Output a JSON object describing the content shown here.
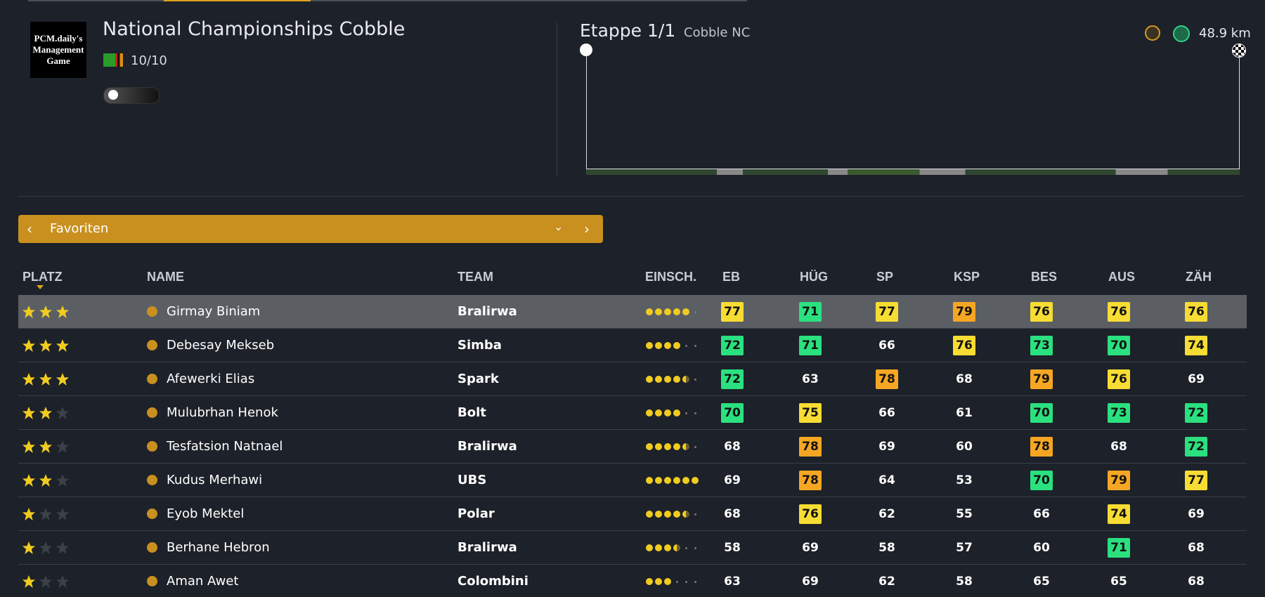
{
  "logo": {
    "lines": [
      "PCM.daily's",
      "Management",
      "Game"
    ]
  },
  "event": {
    "title": "National Championships Cobble",
    "rating": "10/10"
  },
  "stage": {
    "title": "Etappe 1/1",
    "name": "Cobble NC",
    "distance": "48.9 km"
  },
  "filter": {
    "label": "Favoriten"
  },
  "table": {
    "columns": [
      "PLATZ",
      "NAME",
      "TEAM",
      "EINSCH.",
      "EB",
      "HÜG",
      "SP",
      "KSP",
      "BES",
      "AUS",
      "ZÄH"
    ],
    "rows": [
      {
        "stars": 3,
        "name": "Girmay Biniam",
        "team": "Bralirwa",
        "form": 5,
        "stats": [
          77,
          71,
          77,
          79,
          76,
          76,
          76
        ]
      },
      {
        "stars": 3,
        "name": "Debesay Mekseb",
        "team": "Simba",
        "form": 4,
        "stats": [
          72,
          71,
          66,
          76,
          73,
          70,
          74
        ]
      },
      {
        "stars": 3,
        "name": "Afewerki Elias",
        "team": "Spark",
        "form": 4.5,
        "stats": [
          72,
          63,
          78,
          68,
          79,
          76,
          69
        ]
      },
      {
        "stars": 2,
        "name": "Mulubrhan Henok",
        "team": "Bolt",
        "form": 4,
        "stats": [
          70,
          75,
          66,
          61,
          70,
          73,
          72
        ]
      },
      {
        "stars": 2,
        "name": "Tesfatsion Natnael",
        "team": "Bralirwa",
        "form": 4.5,
        "stats": [
          68,
          78,
          69,
          60,
          78,
          68,
          72
        ]
      },
      {
        "stars": 2,
        "name": "Kudus Merhawi",
        "team": "UBS",
        "form": 6,
        "stats": [
          69,
          78,
          64,
          53,
          70,
          79,
          77
        ]
      },
      {
        "stars": 1,
        "name": "Eyob Mektel",
        "team": "Polar",
        "form": 4.5,
        "stats": [
          68,
          76,
          62,
          55,
          66,
          74,
          69
        ]
      },
      {
        "stars": 1,
        "name": "Berhane Hebron",
        "team": "Bralirwa",
        "form": 3.5,
        "stats": [
          58,
          69,
          58,
          57,
          60,
          71,
          68
        ]
      },
      {
        "stars": 1,
        "name": "Aman Awet",
        "team": "Colombini",
        "form": 3,
        "stats": [
          63,
          69,
          62,
          58,
          65,
          65,
          68
        ]
      }
    ]
  }
}
